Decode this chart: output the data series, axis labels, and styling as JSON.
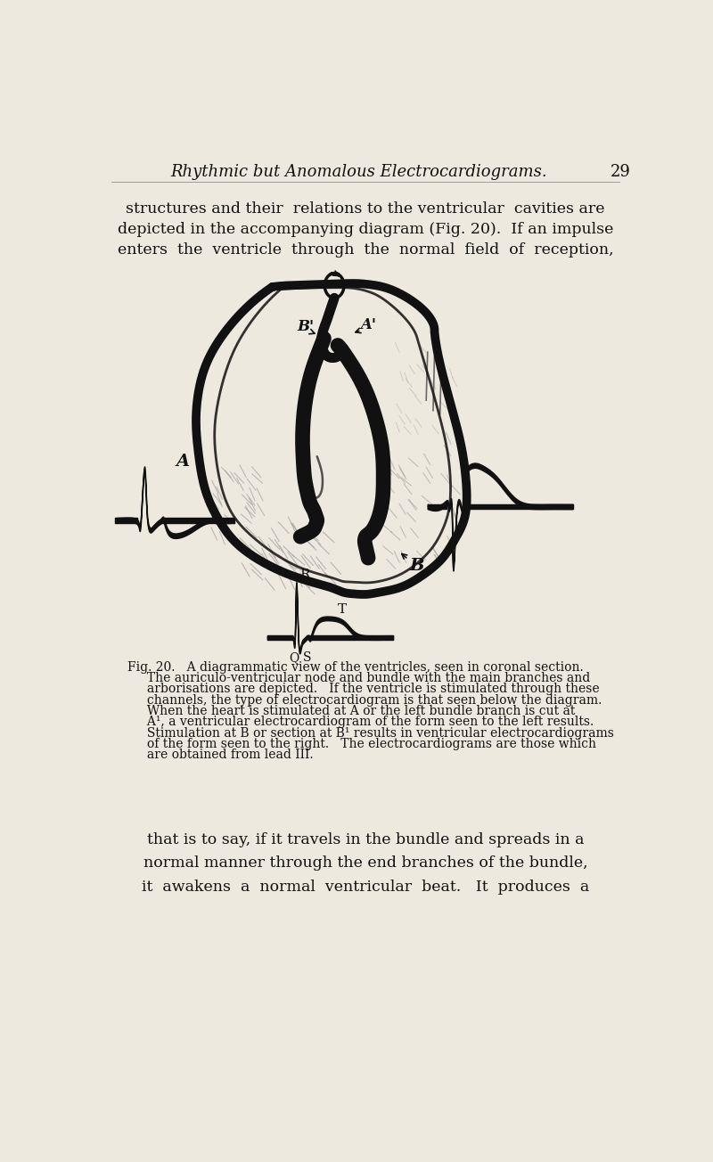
{
  "bg_color": "#ede9de",
  "title_text": "Rhythmic but Anomalous Electrocardiograms.",
  "page_number": "29",
  "body_text_top": [
    "structures and their  relations to the ventricular  cavities are",
    "depicted in the accompanying diagram (Fig. 20).  If an impulse",
    "enters  the  ventricle  through  the  normal  field  of  reception,"
  ],
  "caption_line1": "Fig. 20.   A diagrammatic view of the ventricles, seen in coronal section.",
  "caption_rest": [
    "     The auriculo-ventricular node and bundle with the main branches and",
    "     arborisations are depicted.   If the ventricle is stimulated through these",
    "     channels, the type of electrocardiogram is that seen below the diagram.",
    "     When the heart is stimulated at A or the left bundle branch is cut at",
    "     A¹, a ventricular electrocardiogram of the form seen to the left results.",
    "     Stimulation at B or section at B¹ results in ventricular electrocardiograms",
    "     of the form seen to the right.   The electrocardiograms are those which",
    "     are obtained from lead III."
  ],
  "body_text_bottom": [
    "that is to say, if it travels in the bundle and spreads in a",
    "normal manner through the end branches of the bundle,",
    "it  awakens  a  normal  ventricular  beat.   It  produces  a"
  ],
  "ink_color": "#111111",
  "light_ink": "#888888"
}
